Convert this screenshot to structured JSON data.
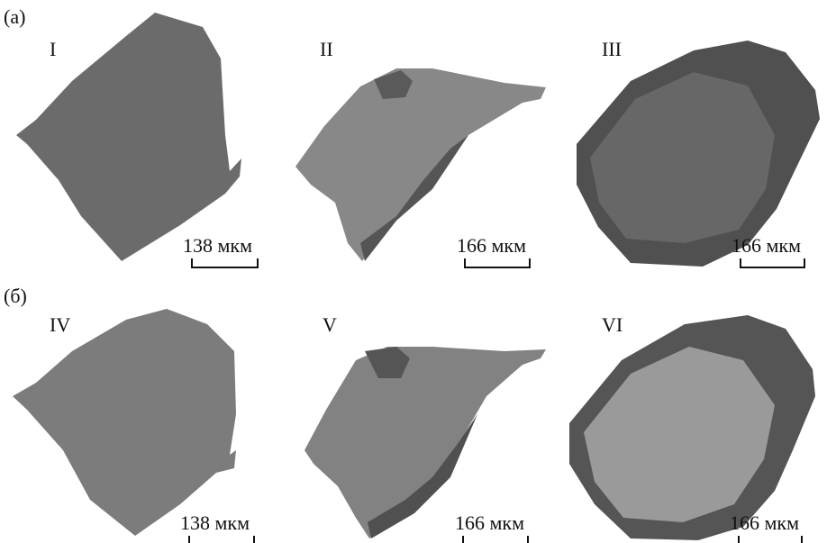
{
  "panels": [
    {
      "label": "(а)",
      "grains": [
        {
          "label": "I",
          "scale": "138 мкм"
        },
        {
          "label": "II",
          "scale": "166 мкм"
        },
        {
          "label": "III",
          "scale": "166 мкм"
        }
      ]
    },
    {
      "label": "(б)",
      "grains": [
        {
          "label": "IV",
          "scale": "138 мкм"
        },
        {
          "label": "V",
          "scale": "166 мкм"
        },
        {
          "label": "VI",
          "scale": "166 мкм"
        }
      ]
    }
  ]
}
